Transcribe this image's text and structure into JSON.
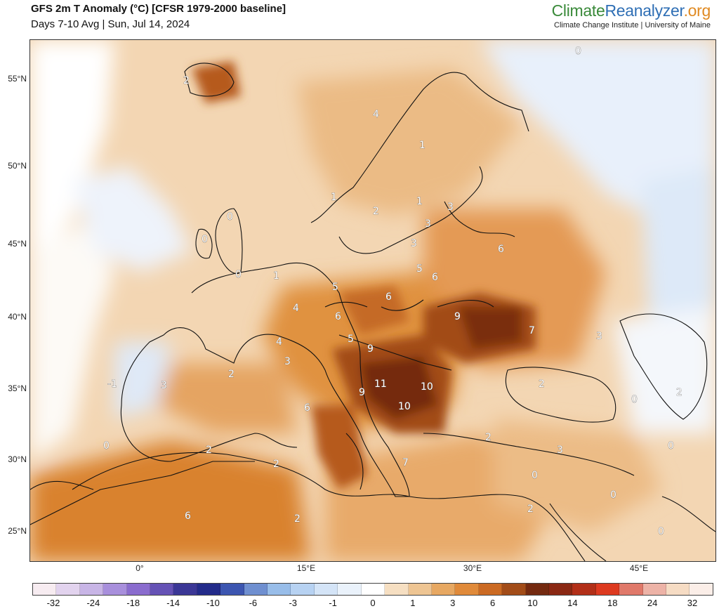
{
  "header": {
    "title": "GFS 2m T Anomaly (°C) [CFSR 1979-2000 baseline]",
    "subtitle": "Days 7-10 Avg | Sun, Jul 14, 2024"
  },
  "brand": {
    "part1": "Climate",
    "part2": "Reanalyzer",
    "part3": ".org",
    "tagline": "Climate Change Institute | University of Maine"
  },
  "axes": {
    "lat_labels": [
      "55°N",
      "50°N",
      "45°N",
      "40°N",
      "35°N",
      "30°N",
      "25°N"
    ],
    "lon_labels": [
      "0°",
      "15°E",
      "30°E",
      "45°E"
    ]
  },
  "colorbar": {
    "colors": [
      "#f7ecf1",
      "#e2d3ee",
      "#c8b5e6",
      "#a88fdc",
      "#8a6cce",
      "#6552b5",
      "#3b3796",
      "#232b8a",
      "#3c55b0",
      "#6f8fd0",
      "#98bde9",
      "#b7d2f2",
      "#d4e4f7",
      "#eaf2fb",
      "#ffffff",
      "#f6dfc2",
      "#eec593",
      "#e7a862",
      "#e08a3a",
      "#cb6a23",
      "#a24c18",
      "#742a10",
      "#8a2813",
      "#b22f18",
      "#dd3a20",
      "#e0796a",
      "#edb3a7",
      "#f6dcc4",
      "#fbeee8"
    ],
    "tick_labels": [
      "-32",
      "-24",
      "-18",
      "-14",
      "-10",
      "-6",
      "-3",
      "-1",
      "0",
      "1",
      "3",
      "6",
      "10",
      "14",
      "18",
      "24",
      "32"
    ]
  },
  "map_labels": [
    "2",
    "0",
    "0",
    "4",
    "1",
    "1",
    "2",
    "1",
    "0",
    "3",
    "3",
    "0",
    "3",
    "5",
    "6",
    "1",
    "5",
    "6",
    "4",
    "6",
    "6",
    "9",
    "7",
    "3",
    "4",
    "5",
    "9",
    "-1",
    "3",
    "2",
    "3",
    "9",
    "11",
    "10",
    "2",
    "0",
    "2",
    "6",
    "10",
    "0",
    "2",
    "2",
    "3",
    "7",
    "0",
    "0",
    "2",
    "6",
    "2",
    "2",
    "0",
    "0"
  ]
}
